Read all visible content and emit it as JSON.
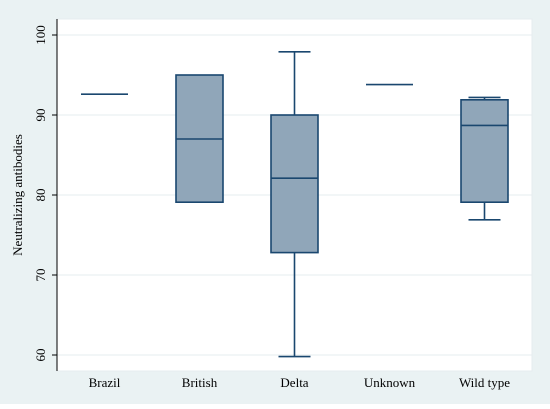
{
  "chart_data": {
    "type": "box",
    "title": "",
    "xlabel": "",
    "ylabel": "Neutralizing antibodies",
    "ylim": [
      58,
      102
    ],
    "yticks": [
      60,
      70,
      80,
      90,
      100
    ],
    "grid": "horizontal",
    "categories": [
      "Brazil",
      "British",
      "Delta",
      "Unknown",
      "Wild type"
    ],
    "boxes": [
      {
        "category": "Brazil",
        "whisker_low": 92.6,
        "q1": 92.6,
        "median": 92.6,
        "q3": 92.6,
        "whisker_high": 92.6
      },
      {
        "category": "British",
        "whisker_low": 79.1,
        "q1": 79.1,
        "median": 87,
        "q3": 95,
        "whisker_high": 95
      },
      {
        "category": "Delta",
        "whisker_low": 59.8,
        "q1": 72.8,
        "median": 82.1,
        "q3": 90,
        "whisker_high": 97.9
      },
      {
        "category": "Unknown",
        "whisker_low": 93.8,
        "q1": 93.8,
        "median": 93.8,
        "q3": 93.8,
        "whisker_high": 93.8
      },
      {
        "category": "Wild type",
        "whisker_low": 76.9,
        "q1": 79.1,
        "median": 88.7,
        "q3": 91.9,
        "whisker_high": 92.2
      }
    ],
    "colors": {
      "background": "#eaf2f3",
      "plot_area": "#ffffff",
      "grid": "#e6ecef",
      "box_fill": "#90a6b9",
      "box_stroke": "#1a476f",
      "text": "#000000"
    }
  }
}
